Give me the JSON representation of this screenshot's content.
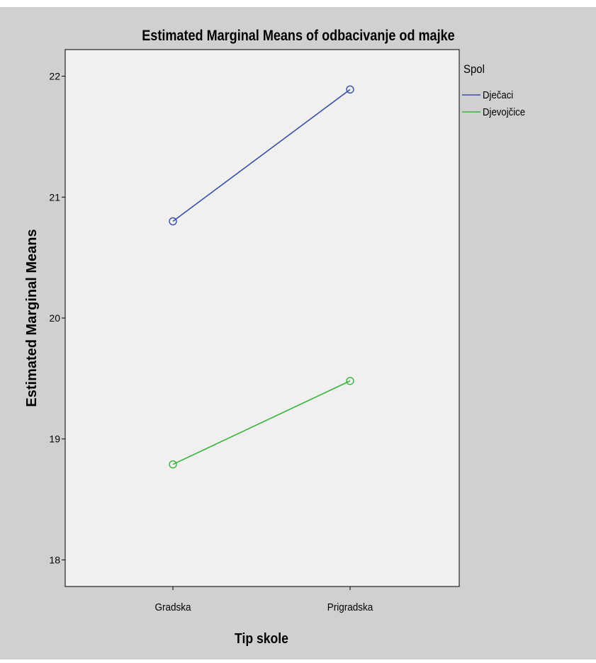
{
  "colors": {
    "outer_background": "#d0d0d0",
    "plot_background": "#f0f0f0",
    "frame": "#000000",
    "series_1": "#3a4fa6",
    "series_2": "#38b43c"
  },
  "chart_data": {
    "type": "line",
    "title": "Estimated Marginal Means of odbacivanje od majke",
    "xlabel": "Tip skole",
    "ylabel": "Estimated Marginal Means",
    "categories": [
      "Gradska",
      "Prigradska"
    ],
    "ylim": [
      17.78,
      22.22
    ],
    "yticks": [
      18,
      19,
      20,
      21,
      22
    ],
    "ytick_labels": [
      "18",
      "19",
      "20",
      "21",
      "22"
    ],
    "grid": false,
    "legend": {
      "title": "Spol",
      "position": "top-right-outside"
    },
    "series": [
      {
        "name": "Dječaci",
        "color": "#3a4fa6",
        "values": [
          20.8,
          21.89
        ]
      },
      {
        "name": "Djevojčice",
        "color": "#38b43c",
        "values": [
          18.79,
          19.48
        ]
      }
    ]
  }
}
